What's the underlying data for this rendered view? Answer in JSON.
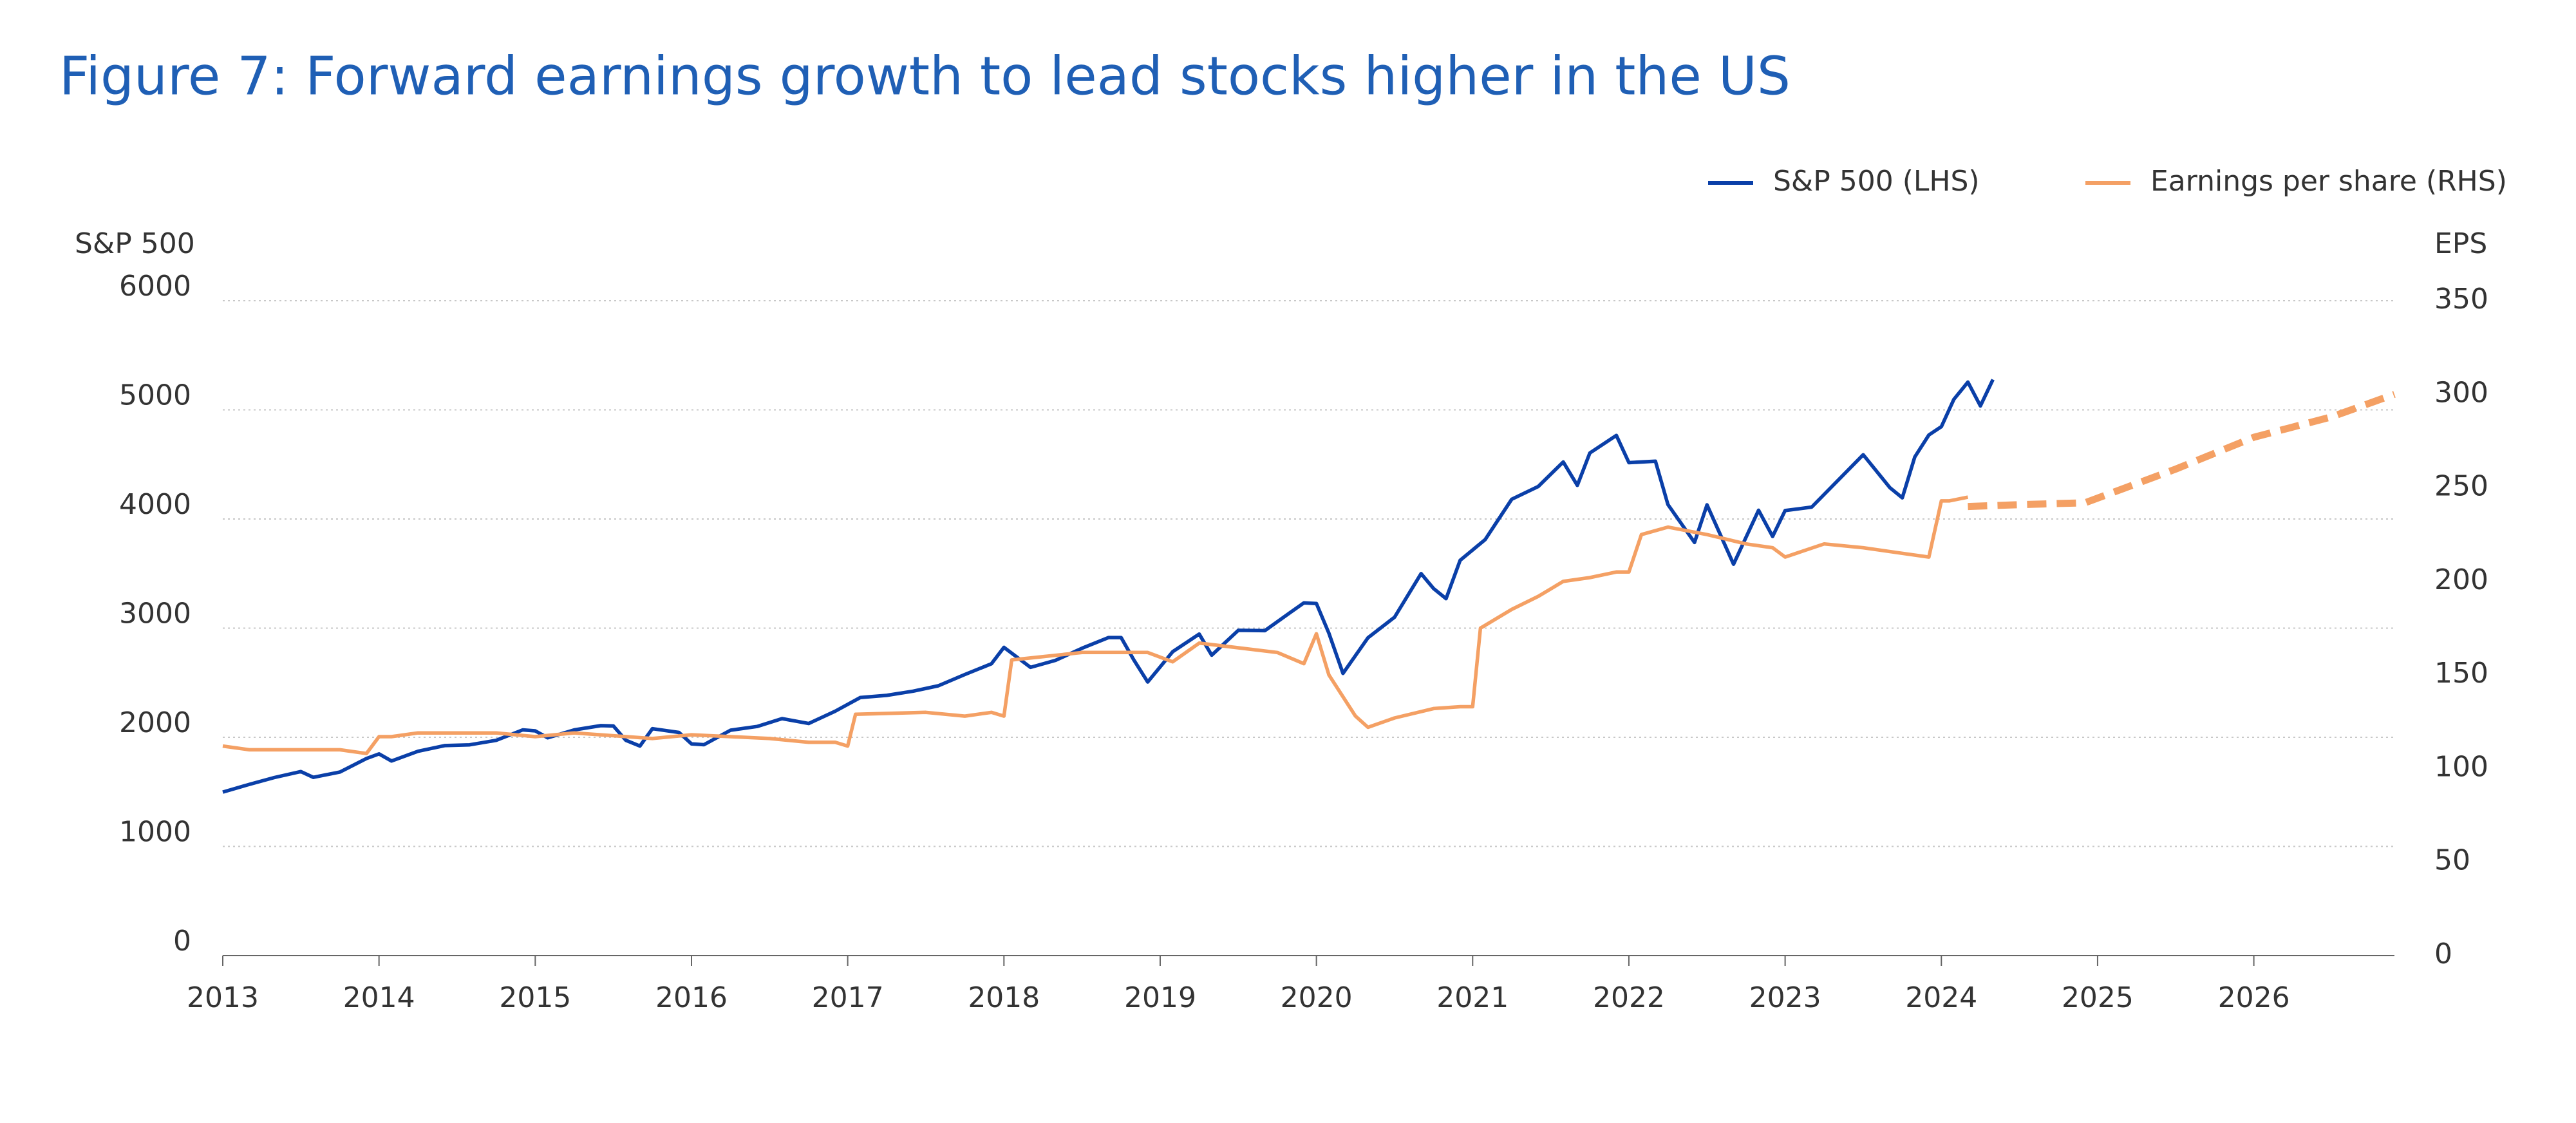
{
  "chart_data": {
    "type": "line",
    "title": "Figure 7: Forward earnings growth to lead stocks higher in the US",
    "y_label": "S&P 500",
    "y2_label": "EPS",
    "xlim": [
      2013,
      2026.9
    ],
    "xticks": [
      2013,
      2014,
      2015,
      2016,
      2017,
      2018,
      2019,
      2020,
      2021,
      2022,
      2023,
      2024,
      2025,
      2026
    ],
    "ylim": [
      0,
      6000
    ],
    "yticks": [
      0,
      1000,
      2000,
      3000,
      4000,
      5000,
      6000
    ],
    "y2lim": [
      0,
      350
    ],
    "y2ticks": [
      0,
      50,
      100,
      150,
      200,
      250,
      300,
      350
    ],
    "grid": true,
    "legend": "top-right",
    "series": [
      {
        "name": "S&P 500 (LHS)",
        "color": "#0a3fa8",
        "axis": "y",
        "x": [
          2013.0,
          2013.17,
          2013.33,
          2013.5,
          2013.58,
          2013.75,
          2013.92,
          2014.0,
          2014.08,
          2014.25,
          2014.42,
          2014.58,
          2014.75,
          2014.92,
          2015.0,
          2015.08,
          2015.25,
          2015.42,
          2015.5,
          2015.58,
          2015.67,
          2015.75,
          2015.92,
          2016.0,
          2016.08,
          2016.25,
          2016.42,
          2016.58,
          2016.75,
          2016.92,
          2017.08,
          2017.25,
          2017.42,
          2017.58,
          2017.75,
          2017.92,
          2018.0,
          2018.17,
          2018.33,
          2018.5,
          2018.67,
          2018.75,
          2018.83,
          2018.92,
          2019.08,
          2019.25,
          2019.33,
          2019.5,
          2019.67,
          2019.83,
          2019.92,
          2020.0,
          2020.08,
          2020.17,
          2020.33,
          2020.5,
          2020.67,
          2020.75,
          2020.83,
          2020.92,
          2021.08,
          2021.25,
          2021.42,
          2021.58,
          2021.67,
          2021.75,
          2021.92,
          2022.0,
          2022.17,
          2022.25,
          2022.42,
          2022.5,
          2022.67,
          2022.83,
          2022.92,
          2023.0,
          2023.17,
          2023.5,
          2023.67,
          2023.75,
          2023.83,
          2023.92,
          2024.0,
          2024.08,
          2024.17,
          2024.25,
          2024.33
        ],
        "values": [
          1498,
          1569,
          1631,
          1686,
          1633,
          1682,
          1806,
          1848,
          1783,
          1872,
          1924,
          1931,
          1972,
          2068,
          2059,
          1995,
          2068,
          2107,
          2104,
          1972,
          1920,
          2079,
          2044,
          1940,
          1932,
          2065,
          2099,
          2171,
          2126,
          2239,
          2364,
          2384,
          2423,
          2472,
          2575,
          2674,
          2824,
          2641,
          2705,
          2816,
          2914,
          2914,
          2712,
          2507,
          2784,
          2946,
          2752,
          2980,
          2977,
          3141,
          3231,
          3226,
          2954,
          2585,
          2912,
          3100,
          3500,
          3363,
          3270,
          3622,
          3811,
          4181,
          4298,
          4523,
          4308,
          4605,
          4766,
          4516,
          4530,
          4132,
          3785,
          4130,
          3586,
          4080,
          3840,
          4077,
          4109,
          4589,
          4288,
          4194,
          4568,
          4770,
          4846,
          5096,
          5254,
          5036,
          5278
        ]
      },
      {
        "name": "Earnings per share (RHS)",
        "color": "#f4a064",
        "axis": "y2",
        "x": [
          2013.0,
          2013.17,
          2013.5,
          2013.75,
          2013.92,
          2014.0,
          2014.08,
          2014.25,
          2014.75,
          2015.0,
          2015.25,
          2015.75,
          2016.0,
          2016.25,
          2016.5,
          2016.75,
          2016.92,
          2017.0,
          2017.05,
          2017.5,
          2017.75,
          2017.92,
          2018.0,
          2018.05,
          2018.5,
          2018.92,
          2019.08,
          2019.25,
          2019.75,
          2019.92,
          2020.0,
          2020.08,
          2020.25,
          2020.33,
          2020.5,
          2020.75,
          2020.92,
          2021.0,
          2021.05,
          2021.25,
          2021.42,
          2021.58,
          2021.75,
          2021.92,
          2022.0,
          2022.08,
          2022.25,
          2022.5,
          2022.75,
          2022.92,
          2023.0,
          2023.25,
          2023.5,
          2023.75,
          2023.92,
          2024.0,
          2024.05,
          2024.17
        ],
        "values": [
          112,
          110,
          110,
          110,
          108,
          117,
          117,
          119,
          119,
          117,
          119,
          116,
          118,
          117,
          116,
          114,
          114,
          112,
          129,
          130,
          128,
          130,
          128,
          158,
          162,
          162,
          157,
          167,
          162,
          156,
          172,
          150,
          128,
          122,
          127,
          132,
          133,
          133,
          175,
          185,
          192,
          200,
          202,
          205,
          205,
          225,
          229,
          225,
          220,
          218,
          213,
          220,
          218,
          215,
          213,
          243,
          243,
          245
        ],
        "forecast_x": [
          2024.17,
          2024.5,
          2024.92,
          2025.5,
          2026.0,
          2026.5,
          2026.9
        ],
        "forecast_values": [
          240,
          241,
          242,
          260,
          277,
          288,
          300
        ]
      }
    ]
  }
}
